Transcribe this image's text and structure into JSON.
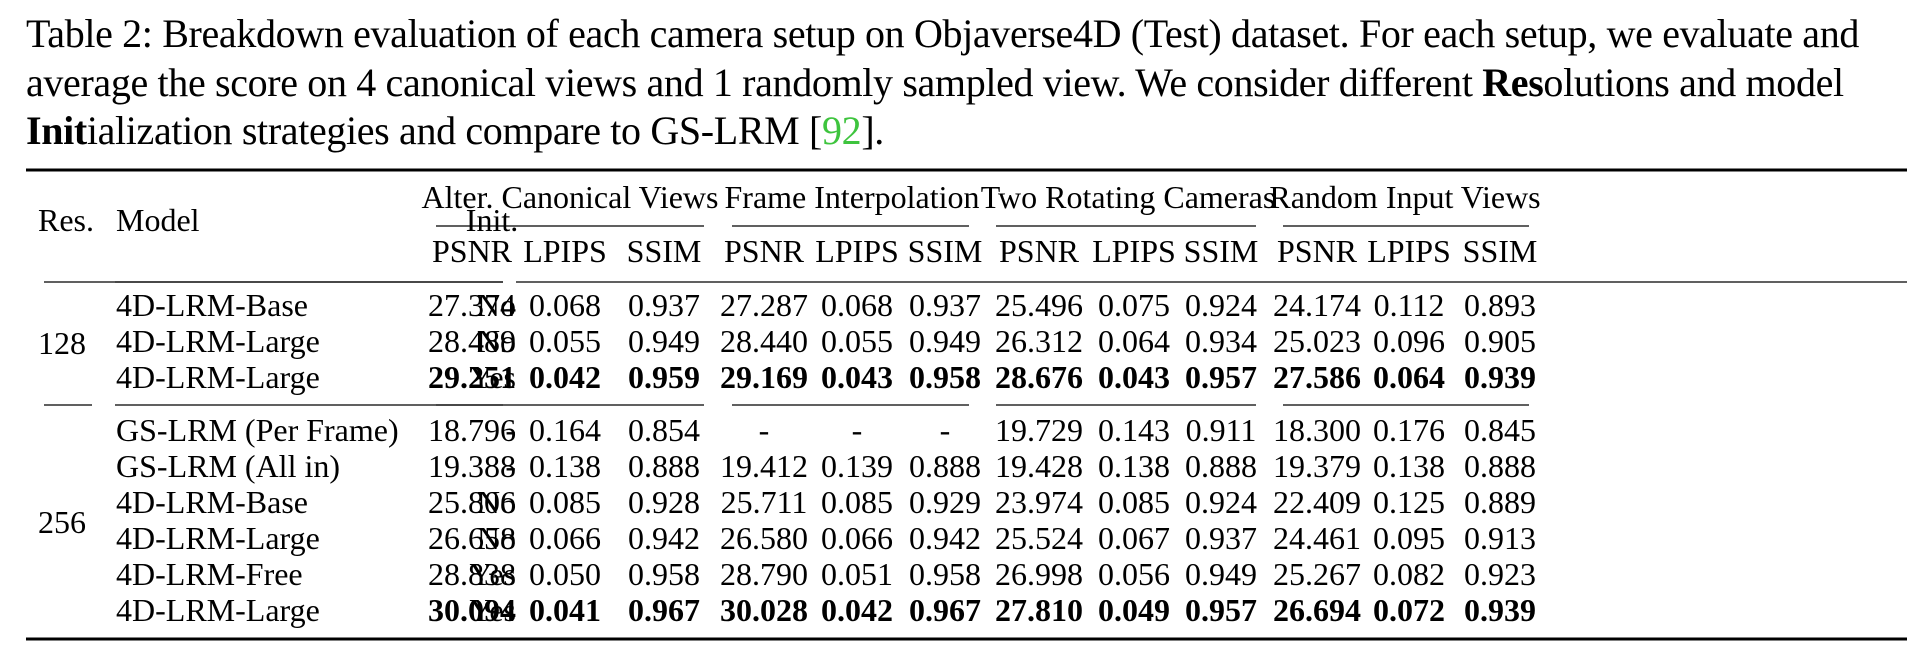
{
  "caption": {
    "label": "Table 2:",
    "text_1": " Breakdown evaluation of each camera setup on Objaverse4D (Test) dataset. For each setup, we evaluate and average the score on 4 canonical views and 1 randomly sampled view. We consider different ",
    "bold_1": "Res",
    "text_2": "olutions and model ",
    "bold_2": "Init",
    "text_3": "ialization strategies and compare to GS-LRM [",
    "cite": "92",
    "text_4": "]."
  },
  "table": {
    "header": {
      "res": "Res.",
      "model": "Model",
      "init": "Init.",
      "groups": [
        "Alter. Canonical Views",
        "Frame Interpolation",
        "Two Rotating Cameras",
        "Random Input Views"
      ],
      "metrics": [
        "PSNR",
        "LPIPS",
        "SSIM"
      ]
    },
    "sections": [
      {
        "res": "128",
        "rows": [
          {
            "model": "4D-LRM-Base",
            "init": "No",
            "bold": false,
            "values": [
              "27.374",
              "0.068",
              "0.937",
              "27.287",
              "0.068",
              "0.937",
              "25.496",
              "0.075",
              "0.924",
              "24.174",
              "0.112",
              "0.893"
            ]
          },
          {
            "model": "4D-LRM-Large",
            "init": "No",
            "bold": false,
            "values": [
              "28.489",
              "0.055",
              "0.949",
              "28.440",
              "0.055",
              "0.949",
              "26.312",
              "0.064",
              "0.934",
              "25.023",
              "0.096",
              "0.905"
            ]
          },
          {
            "model": "4D-LRM-Large",
            "init": "Yes",
            "bold": true,
            "values": [
              "29.251",
              "0.042",
              "0.959",
              "29.169",
              "0.043",
              "0.958",
              "28.676",
              "0.043",
              "0.957",
              "27.586",
              "0.064",
              "0.939"
            ]
          }
        ]
      },
      {
        "res": "256",
        "rows": [
          {
            "model": "GS-LRM (Per Frame)",
            "init": "-",
            "bold": false,
            "values": [
              "18.796",
              "0.164",
              "0.854",
              "-",
              "-",
              "-",
              "19.729",
              "0.143",
              "0.911",
              "18.300",
              "0.176",
              "0.845"
            ]
          },
          {
            "model": "GS-LRM (All in)",
            "init": "-",
            "bold": false,
            "values": [
              "19.388",
              "0.138",
              "0.888",
              "19.412",
              "0.139",
              "0.888",
              "19.428",
              "0.138",
              "0.888",
              "19.379",
              "0.138",
              "0.888"
            ]
          },
          {
            "model": "4D-LRM-Base",
            "init": "No",
            "bold": false,
            "values": [
              "25.806",
              "0.085",
              "0.928",
              "25.711",
              "0.085",
              "0.929",
              "23.974",
              "0.085",
              "0.924",
              "22.409",
              "0.125",
              "0.889"
            ]
          },
          {
            "model": "4D-LRM-Large",
            "init": "No",
            "bold": false,
            "values": [
              "26.658",
              "0.066",
              "0.942",
              "26.580",
              "0.066",
              "0.942",
              "25.524",
              "0.067",
              "0.937",
              "24.461",
              "0.095",
              "0.913"
            ]
          },
          {
            "model": "4D-LRM-Free",
            "init": "Yes",
            "bold": false,
            "values": [
              "28.838",
              "0.050",
              "0.958",
              "28.790",
              "0.051",
              "0.958",
              "26.998",
              "0.056",
              "0.949",
              "25.267",
              "0.082",
              "0.923"
            ]
          },
          {
            "model": "4D-LRM-Large",
            "init": "Yes",
            "bold": true,
            "values": [
              "30.094",
              "0.041",
              "0.967",
              "30.028",
              "0.042",
              "0.967",
              "27.810",
              "0.049",
              "0.957",
              "26.694",
              "0.072",
              "0.939"
            ]
          }
        ]
      }
    ]
  }
}
